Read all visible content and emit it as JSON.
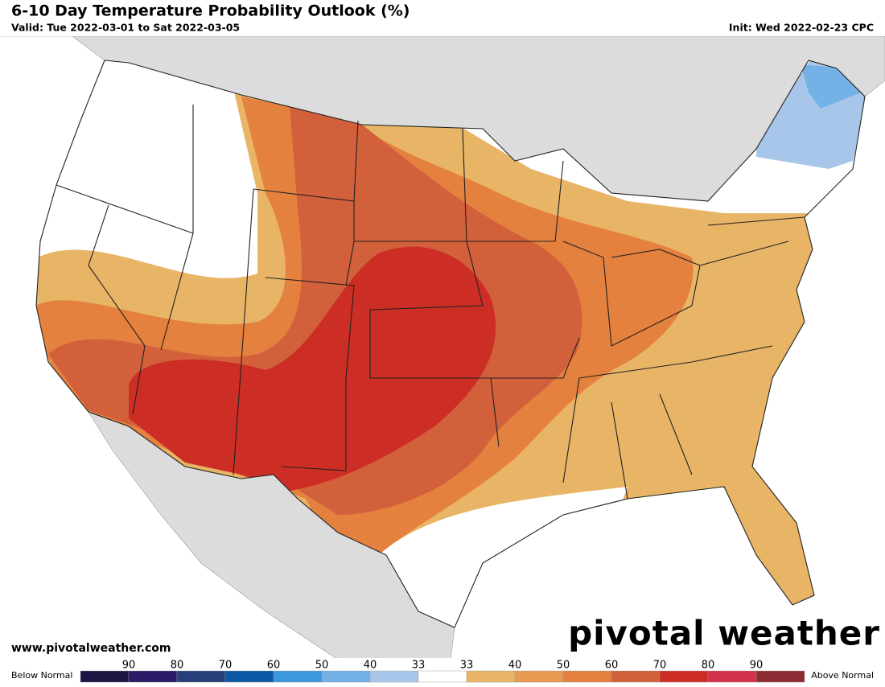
{
  "header": {
    "title": "6-10 Day Temperature Probability Outlook (%)",
    "valid": "Valid: Tue 2022-03-01 to Sat 2022-03-05",
    "init": "Init: Wed 2022-02-23 CPC"
  },
  "footer": {
    "url": "www.pivotalweather.com",
    "brand": "pivotal weather"
  },
  "legend": {
    "below_label": "Below Normal",
    "above_label": "Above Normal",
    "colors": [
      "#1d1745",
      "#2d1a66",
      "#283f7a",
      "#0d58a4",
      "#3d97dd",
      "#74b1e6",
      "#a8c6ea",
      "#ffffff",
      "#e8b466",
      "#e89a52",
      "#e5813f",
      "#d2603a",
      "#cc2e26",
      "#d4314a",
      "#8c2d33",
      "#6e1f22"
    ],
    "ticks": [
      "90",
      "80",
      "70",
      "60",
      "50",
      "40",
      "33",
      "33",
      "40",
      "50",
      "60",
      "70",
      "80",
      "90"
    ]
  }
}
